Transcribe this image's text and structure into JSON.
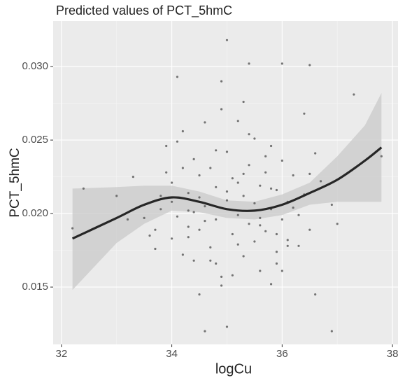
{
  "chart_data": {
    "type": "scatter",
    "title": "Predicted values of PCT_5hmC",
    "x_label": "logCu",
    "y_label": "PCT_5hmC",
    "xlim": [
      31.85,
      38.1
    ],
    "ylim": [
      0.0111,
      0.0331
    ],
    "xticks": [
      32,
      34,
      36,
      38
    ],
    "yticks": [
      {
        "value": 0.015,
        "label": "0.015"
      },
      {
        "value": 0.02,
        "label": "0.020"
      },
      {
        "value": 0.025,
        "label": "0.025"
      },
      {
        "value": 0.03,
        "label": "0.030"
      }
    ],
    "grid": true,
    "points": {
      "color": "#555555",
      "x": [
        35.0,
        34.9,
        35.4,
        36.0,
        36.5,
        34.1,
        37.3,
        36.9,
        34.6,
        35.0,
        32.2,
        32.4,
        37.8,
        33.3,
        36.6,
        34.5,
        33.0,
        33.2,
        33.6,
        33.7,
        33.8,
        33.9,
        34.0,
        34.0,
        34.1,
        34.2,
        34.2,
        34.3,
        34.3,
        34.4,
        34.4,
        34.5,
        34.5,
        34.6,
        34.6,
        34.7,
        34.7,
        34.8,
        34.8,
        34.9,
        34.9,
        35.0,
        35.0,
        35.1,
        35.1,
        35.2,
        35.2,
        35.3,
        35.3,
        35.4,
        35.4,
        35.5,
        35.5,
        35.6,
        35.6,
        35.7,
        35.7,
        35.8,
        35.8,
        35.9,
        35.9,
        36.0,
        36.0,
        36.1,
        36.1,
        36.2,
        36.3,
        36.4,
        36.5,
        36.6,
        36.7,
        36.9,
        37.0,
        33.9,
        34.3,
        34.6,
        34.8,
        35.1,
        35.3,
        35.5,
        35.7,
        35.9,
        36.2,
        34.0,
        34.2,
        34.5,
        34.7,
        35.0,
        35.2,
        35.4,
        35.6,
        35.8,
        36.0,
        36.3,
        34.4,
        34.9,
        35.3,
        35.8,
        36.4,
        33.5,
        33.7,
        34.1,
        34.8,
        35.6,
        36.1,
        33.8,
        35.2,
        35.9,
        34.3,
        36.5
      ],
      "y": [
        0.0318,
        0.029,
        0.0302,
        0.0302,
        0.0301,
        0.0293,
        0.0281,
        0.012,
        0.012,
        0.0123,
        0.019,
        0.0217,
        0.0239,
        0.0225,
        0.0145,
        0.0145,
        0.0212,
        0.0196,
        0.0185,
        0.0176,
        0.0203,
        0.0246,
        0.0221,
        0.0183,
        0.0198,
        0.0256,
        0.0172,
        0.0214,
        0.0191,
        0.0237,
        0.0168,
        0.0226,
        0.0189,
        0.0262,
        0.0205,
        0.0177,
        0.0231,
        0.0196,
        0.0218,
        0.0271,
        0.0157,
        0.0209,
        0.0242,
        0.0186,
        0.0224,
        0.0199,
        0.0263,
        0.0171,
        0.0212,
        0.0233,
        0.0193,
        0.0207,
        0.0251,
        0.0161,
        0.0219,
        0.0188,
        0.0228,
        0.0203,
        0.0246,
        0.0174,
        0.0216,
        0.0196,
        0.0236,
        0.0208,
        0.0182,
        0.0226,
        0.0199,
        0.0213,
        0.0189,
        0.0241,
        0.0222,
        0.0206,
        0.0193,
        0.0228,
        0.0184,
        0.0195,
        0.0243,
        0.0158,
        0.0227,
        0.0181,
        0.0239,
        0.0166,
        0.0204,
        0.0208,
        0.0231,
        0.0211,
        0.0168,
        0.0215,
        0.0179,
        0.0254,
        0.0197,
        0.0217,
        0.0161,
        0.0178,
        0.0201,
        0.0151,
        0.0276,
        0.0152,
        0.0268,
        0.0197,
        0.0189,
        0.0249,
        0.0166,
        0.0192,
        0.0178,
        0.0212,
        0.0221,
        0.0186,
        0.0202,
        0.0227
      ]
    },
    "fit": {
      "color": "#262626",
      "band_color": "#c9c9c9",
      "x": [
        32.2,
        33.0,
        33.5,
        34.0,
        34.5,
        35.0,
        35.5,
        36.0,
        36.5,
        37.0,
        37.5,
        37.8
      ],
      "y": [
        0.0183,
        0.0197,
        0.0206,
        0.0211,
        0.0208,
        0.0203,
        0.0202,
        0.0206,
        0.0214,
        0.0223,
        0.0236,
        0.0245
      ],
      "lower": [
        0.0148,
        0.018,
        0.0193,
        0.0202,
        0.0201,
        0.0197,
        0.0196,
        0.0199,
        0.0206,
        0.0208,
        0.0208,
        0.0208
      ],
      "upper": [
        0.0217,
        0.0218,
        0.0219,
        0.0219,
        0.0215,
        0.0209,
        0.0208,
        0.0213,
        0.0221,
        0.0239,
        0.026,
        0.0282
      ]
    }
  }
}
